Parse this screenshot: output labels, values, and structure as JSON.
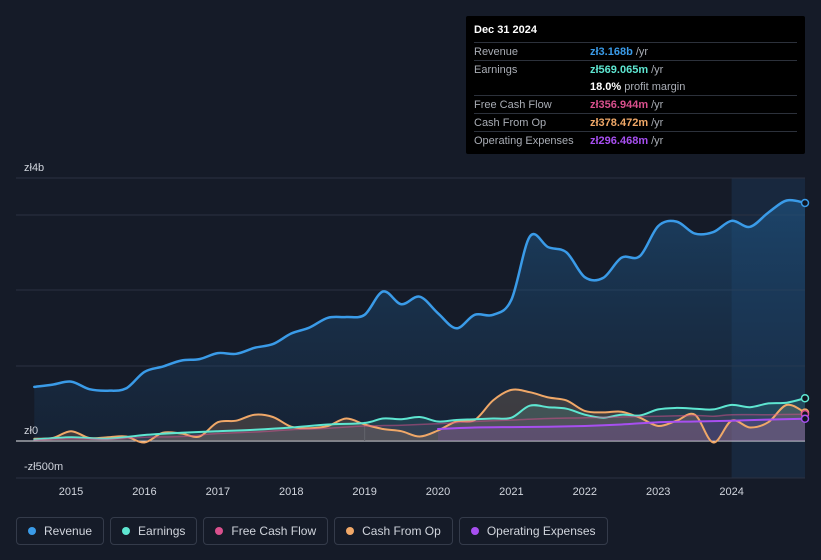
{
  "tooltip": {
    "date": "Dec 31 2024",
    "rows": [
      {
        "label": "Revenue",
        "value": "zł3.168b",
        "unit": "/yr",
        "color": "#3a9be8"
      },
      {
        "label": "Earnings",
        "value": "zł569.065m",
        "unit": "/yr",
        "color": "#5ee6d1"
      },
      {
        "label": "",
        "value": "18.0%",
        "unit": "profit margin",
        "color": "#ffffff"
      },
      {
        "label": "Free Cash Flow",
        "value": "zł356.944m",
        "unit": "/yr",
        "color": "#d9508d"
      },
      {
        "label": "Cash From Op",
        "value": "zł378.472m",
        "unit": "/yr",
        "color": "#f0a868"
      },
      {
        "label": "Operating Expenses",
        "value": "zł296.468m",
        "unit": "/yr",
        "color": "#a74ff0"
      }
    ]
  },
  "chart_data": {
    "type": "line",
    "y_tick_labels": {
      "top": "zł4b",
      "zero": "zł0",
      "bottom": "-zł500m"
    },
    "ylim": [
      -500,
      3500
    ],
    "x_tick_labels": [
      "2015",
      "2016",
      "2017",
      "2018",
      "2019",
      "2020",
      "2021",
      "2022",
      "2023",
      "2024"
    ],
    "x_ticks": [
      2015,
      2016,
      2017,
      2018,
      2019,
      2020,
      2021,
      2022,
      2023,
      2024
    ],
    "xlim": [
      2014.25,
      2025.0
    ],
    "highlight_start": 2024.0,
    "units": "zł millions",
    "series": [
      {
        "name": "Revenue",
        "color": "#3a9be8",
        "x": [
          2014.5,
          2014.75,
          2015.0,
          2015.25,
          2015.5,
          2015.75,
          2016.0,
          2016.25,
          2016.5,
          2016.75,
          2017.0,
          2017.25,
          2017.5,
          2017.75,
          2018.0,
          2018.25,
          2018.5,
          2018.75,
          2019.0,
          2019.25,
          2019.5,
          2019.75,
          2020.0,
          2020.25,
          2020.5,
          2020.75,
          2021.0,
          2021.25,
          2021.5,
          2021.75,
          2022.0,
          2022.25,
          2022.5,
          2022.75,
          2023.0,
          2023.25,
          2023.5,
          2023.75,
          2024.0,
          2024.25,
          2024.5,
          2024.75,
          2025.0
        ],
        "values": [
          720,
          750,
          790,
          690,
          670,
          700,
          920,
          990,
          1070,
          1090,
          1170,
          1160,
          1240,
          1290,
          1430,
          1510,
          1640,
          1650,
          1680,
          1990,
          1820,
          1920,
          1700,
          1500,
          1680,
          1680,
          1880,
          2720,
          2580,
          2510,
          2180,
          2170,
          2440,
          2460,
          2860,
          2920,
          2760,
          2780,
          2930,
          2850,
          3040,
          3200,
          3168
        ]
      },
      {
        "name": "Earnings",
        "color": "#5ee6d1",
        "x": [
          2014.5,
          2015.0,
          2015.5,
          2016.0,
          2016.5,
          2017.0,
          2017.5,
          2018.0,
          2018.5,
          2019.0,
          2019.25,
          2019.5,
          2019.75,
          2020.0,
          2020.25,
          2020.5,
          2020.75,
          2021.0,
          2021.25,
          2021.5,
          2021.75,
          2022.0,
          2022.25,
          2022.5,
          2022.75,
          2023.0,
          2023.25,
          2023.5,
          2023.75,
          2024.0,
          2024.25,
          2024.5,
          2024.75,
          2025.0
        ],
        "values": [
          20,
          50,
          30,
          80,
          110,
          130,
          150,
          180,
          220,
          240,
          300,
          290,
          320,
          260,
          280,
          290,
          300,
          310,
          470,
          450,
          430,
          350,
          310,
          350,
          340,
          420,
          440,
          430,
          420,
          480,
          450,
          500,
          510,
          569
        ]
      },
      {
        "name": "Free Cash Flow",
        "color": "#d9508d",
        "x": [
          2014.5,
          2015.0,
          2015.5,
          2016.0,
          2016.5,
          2017.0,
          2017.5,
          2018.0,
          2018.5,
          2019.0,
          2019.5,
          2020.0,
          2020.5,
          2021.0,
          2021.5,
          2022.0,
          2022.5,
          2023.0,
          2023.5,
          2023.75,
          2024.0,
          2024.5,
          2025.0
        ],
        "values": [
          10,
          30,
          20,
          50,
          60,
          100,
          120,
          150,
          170,
          200,
          210,
          230,
          260,
          280,
          300,
          310,
          320,
          330,
          340,
          330,
          350,
          350,
          357
        ]
      },
      {
        "name": "Cash From Op",
        "color": "#f0a868",
        "x": [
          2014.5,
          2014.75,
          2015.0,
          2015.25,
          2015.5,
          2015.75,
          2016.0,
          2016.25,
          2016.5,
          2016.75,
          2017.0,
          2017.25,
          2017.5,
          2017.75,
          2018.0,
          2018.25,
          2018.5,
          2018.75,
          2019.0,
          2019.25,
          2019.5,
          2019.75,
          2020.0,
          2020.25,
          2020.5,
          2020.75,
          2021.0,
          2021.25,
          2021.5,
          2021.75,
          2022.0,
          2022.25,
          2022.5,
          2022.75,
          2023.0,
          2023.25,
          2023.5,
          2023.75,
          2024.0,
          2024.25,
          2024.5,
          2024.75,
          2025.0
        ],
        "values": [
          30,
          40,
          130,
          40,
          50,
          60,
          -20,
          110,
          100,
          60,
          250,
          270,
          350,
          320,
          190,
          170,
          200,
          300,
          220,
          160,
          130,
          60,
          140,
          260,
          280,
          540,
          680,
          650,
          580,
          540,
          400,
          380,
          390,
          310,
          200,
          270,
          350,
          -20,
          270,
          180,
          250,
          480,
          378
        ]
      },
      {
        "name": "Operating Expenses",
        "color": "#a74ff0",
        "x": [
          2020.0,
          2020.5,
          2021.0,
          2021.5,
          2022.0,
          2022.5,
          2023.0,
          2023.5,
          2024.0,
          2024.5,
          2025.0
        ],
        "values": [
          160,
          180,
          185,
          190,
          200,
          220,
          250,
          260,
          270,
          285,
          296
        ]
      }
    ]
  },
  "legend": [
    {
      "label": "Revenue",
      "color": "#3a9be8"
    },
    {
      "label": "Earnings",
      "color": "#5ee6d1"
    },
    {
      "label": "Free Cash Flow",
      "color": "#d9508d"
    },
    {
      "label": "Cash From Op",
      "color": "#f0a868"
    },
    {
      "label": "Operating Expenses",
      "color": "#a74ff0"
    }
  ]
}
